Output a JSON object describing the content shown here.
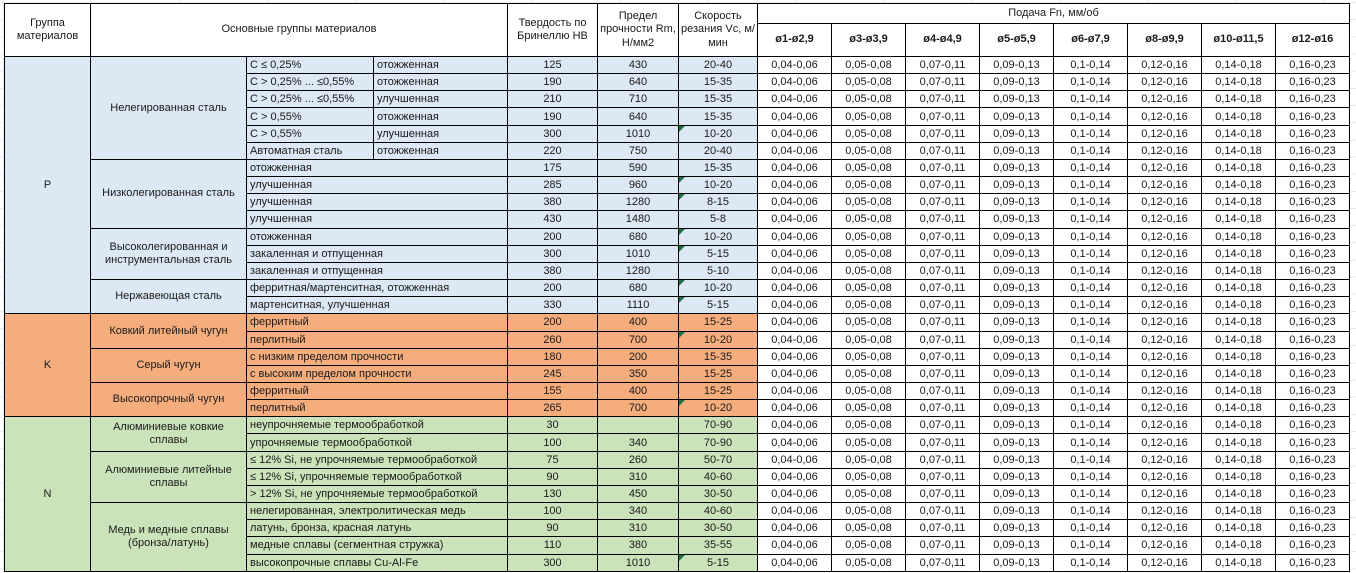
{
  "table": {
    "header": {
      "col_group": "Группа материалов",
      "col_main_groups": "Основные группы материалов",
      "col_hardness": "Твердость по Бринеллю HB",
      "col_strength": "Предел прочности Rm, Н/мм2",
      "col_speed": "Скорость резания Vc, м/мин",
      "feed_title": "Подача Fn, мм/об",
      "feed_columns": [
        "ø1-ø2,9",
        "ø3-ø3,9",
        "ø4-ø4,9",
        "ø5-ø5,9",
        "ø6-ø7,9",
        "ø8-ø9,9",
        "ø10-ø11,5",
        "ø12-ø16"
      ]
    },
    "feed_values": [
      "0,04-0,06",
      "0,05-0,08",
      "0,07-0,11",
      "0,09-0,13",
      "0,1-0,14",
      "0,12-0,16",
      "0,14-0,18",
      "0,16-0,23"
    ],
    "marker_color": "#1E7145",
    "groups": [
      {
        "letter": "P",
        "color": "#DCE8F4",
        "subgroups": [
          {
            "name": "Нелегированная сталь",
            "rows": [
              {
                "comp": "C ≤ 0,25%",
                "state": "отожженная",
                "hb": "125",
                "rm": "430",
                "vc": "20-40",
                "flag": false
              },
              {
                "comp": "C > 0,25% ... ≤0,55%",
                "state": "отожженная",
                "hb": "190",
                "rm": "640",
                "vc": "15-35",
                "flag": false
              },
              {
                "comp": "C > 0,25% ... ≤0,55%",
                "state": "улучшенная",
                "hb": "210",
                "rm": "710",
                "vc": "15-35",
                "flag": false
              },
              {
                "comp": "C > 0,55%",
                "state": "отожженная",
                "hb": "190",
                "rm": "640",
                "vc": "15-35",
                "flag": false
              },
              {
                "comp": "C > 0,55%",
                "state": "улучшенная",
                "hb": "300",
                "rm": "1010",
                "vc": "10-20",
                "flag": true
              },
              {
                "comp": "Автоматная сталь",
                "state": "отожженная",
                "hb": "220",
                "rm": "750",
                "vc": "20-40",
                "flag": false
              }
            ]
          },
          {
            "name": "Низколегированная сталь",
            "rows": [
              {
                "desc": "отожженная",
                "hb": "175",
                "rm": "590",
                "vc": "15-35",
                "flag": false
              },
              {
                "desc": "улучшенная",
                "hb": "285",
                "rm": "960",
                "vc": "10-20",
                "flag": true
              },
              {
                "desc": "улучшенная",
                "hb": "380",
                "rm": "1280",
                "vc": "8-15",
                "flag": true
              },
              {
                "desc": "улучшенная",
                "hb": "430",
                "rm": "1480",
                "vc": "5-8",
                "flag": false
              }
            ]
          },
          {
            "name": "Высоколегированная и инструментальная сталь",
            "rows": [
              {
                "desc": "отожженная",
                "hb": "200",
                "rm": "680",
                "vc": "10-20",
                "flag": true
              },
              {
                "desc": "закаленная и отпущенная",
                "hb": "300",
                "rm": "1010",
                "vc": "5-15",
                "flag": true
              },
              {
                "desc": "закаленная и отпущенная",
                "hb": "380",
                "rm": "1280",
                "vc": "5-10",
                "flag": false
              }
            ]
          },
          {
            "name": "Нержавеющая сталь",
            "rows": [
              {
                "desc": "ферритная/мартенситная, отожженная",
                "hb": "200",
                "rm": "680",
                "vc": "10-20",
                "flag": true
              },
              {
                "desc": "мартенситная, улучшенная",
                "hb": "330",
                "rm": "1110",
                "vc": "5-15",
                "flag": true
              }
            ]
          }
        ]
      },
      {
        "letter": "K",
        "color": "#F5AD7D",
        "subgroups": [
          {
            "name": "Ковкий литейный чугун",
            "rows": [
              {
                "desc": "ферритный",
                "hb": "200",
                "rm": "400",
                "vc": "15-25",
                "flag": false
              },
              {
                "desc": "перлитный",
                "hb": "260",
                "rm": "700",
                "vc": "10-20",
                "flag": true
              }
            ]
          },
          {
            "name": "Серый чугун",
            "rows": [
              {
                "desc": "с низким пределом прочности",
                "hb": "180",
                "rm": "200",
                "vc": "15-35",
                "flag": false
              },
              {
                "desc": "с высоким пределом прочности",
                "hb": "245",
                "rm": "350",
                "vc": "15-25",
                "flag": false
              }
            ]
          },
          {
            "name": "Высокопрочный чугун",
            "rows": [
              {
                "desc": "ферритный",
                "hb": "155",
                "rm": "400",
                "vc": "15-25",
                "flag": false
              },
              {
                "desc": "перлитный",
                "hb": "265",
                "rm": "700",
                "vc": "10-20",
                "flag": true
              }
            ]
          }
        ]
      },
      {
        "letter": "N",
        "color": "#CBE3BA",
        "subgroups": [
          {
            "name": "Алюминиевые ковкие сплавы",
            "rows": [
              {
                "desc": "неупрочняемые термообработкой",
                "hb": "30",
                "rm": "",
                "vc": "70-90",
                "flag": false
              },
              {
                "desc": "упрочняемые термообработкой",
                "hb": "100",
                "rm": "340",
                "vc": "70-90",
                "flag": false
              }
            ]
          },
          {
            "name": "Алюминиевые литейные сплавы",
            "rows": [
              {
                "desc": "≤ 12% Si, не упрочняемые термообработкой",
                "hb": "75",
                "rm": "260",
                "vc": "50-70",
                "flag": false
              },
              {
                "desc": "≤ 12% Si, упрочняемые термообработкой",
                "hb": "90",
                "rm": "310",
                "vc": "40-60",
                "flag": false
              },
              {
                "desc": "> 12% Si, не упрочняемые термообработкой",
                "hb": "130",
                "rm": "450",
                "vc": "30-50",
                "flag": false
              }
            ]
          },
          {
            "name": "Медь и медные сплавы (бронза/латунь)",
            "rows": [
              {
                "desc": "нелегированная, электролитическая медь",
                "hb": "100",
                "rm": "340",
                "vc": "40-60",
                "flag": false
              },
              {
                "desc": "латунь, бронза, красная латунь",
                "hb": "90",
                "rm": "310",
                "vc": "30-50",
                "flag": false
              },
              {
                "desc": "медные сплавы (сегментная стружка)",
                "hb": "110",
                "rm": "380",
                "vc": "35-55",
                "flag": false
              },
              {
                "desc": "высокопрочные сплавы Cu-Al-Fe",
                "hb": "300",
                "rm": "1010",
                "vc": "5-15",
                "flag": true
              }
            ]
          }
        ]
      }
    ]
  }
}
